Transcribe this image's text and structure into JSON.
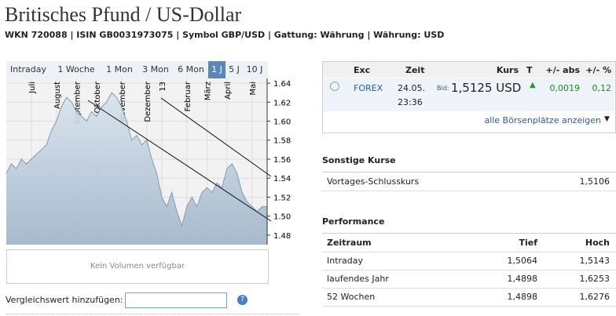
{
  "header": {
    "title": "Britisches Pfund / US-Dollar",
    "subtitle": "WKN 720088 | ISIN GB0031973075 | Symbol GBP/USD | Gattung: Währung | Währung: USD"
  },
  "tabs": [
    "Intraday",
    "1 Woche",
    "1 Mon",
    "3 Mon",
    "6 Mon",
    "1 J",
    "5 J",
    "10 J"
  ],
  "chart_data": {
    "type": "area",
    "watermark": "BoerseGo.de",
    "color": "#7f9ab5",
    "categories": [
      null,
      null,
      null,
      null,
      null,
      "Juli",
      null,
      null,
      null,
      null,
      "August",
      null,
      null,
      null,
      "September",
      null,
      null,
      null,
      "Oktober",
      null,
      null,
      null,
      null,
      "November",
      null,
      null,
      null,
      null,
      "Dezember",
      null,
      null,
      "13",
      null,
      null,
      null,
      null,
      "Februar",
      null,
      null,
      null,
      "März",
      null,
      null,
      null,
      "April",
      null,
      null,
      null,
      null,
      "Mai",
      null,
      null,
      null
    ],
    "values": [
      1.545,
      1.555,
      1.55,
      1.56,
      1.555,
      1.56,
      1.565,
      1.57,
      1.575,
      1.59,
      1.6,
      1.615,
      1.625,
      1.62,
      1.61,
      1.605,
      1.6,
      1.61,
      1.605,
      1.615,
      1.62,
      1.63,
      1.625,
      1.615,
      1.6,
      1.58,
      1.585,
      1.575,
      1.58,
      1.56,
      1.545,
      1.52,
      1.51,
      1.525,
      1.505,
      1.49,
      1.51,
      1.52,
      1.51,
      1.525,
      1.53,
      1.525,
      1.535,
      1.53,
      1.55,
      1.555,
      1.545,
      1.525,
      1.515,
      1.51,
      1.505,
      1.51,
      1.51
    ],
    "ylim": [
      1.47,
      1.645
    ],
    "yticks": [
      1.48,
      {
        "value": 1.5,
        "label": "1.50"
      },
      1.52,
      1.54,
      1.56,
      1.58,
      {
        "value": 1.6,
        "label": "1.60"
      },
      1.62,
      1.64
    ],
    "grid": true
  },
  "volume": "Kein Volumen verfügbar",
  "compare_label": "Vergleichswert hinzufügen:",
  "quote": {
    "headers": [
      "Exc",
      "Zeit",
      "Kurs",
      "T",
      "+/- abs",
      "+/- %"
    ],
    "exchange": "FOREX",
    "date": "24.05.",
    "time": "23:36",
    "bid_label": "Bid:",
    "price": "1,5125 USD",
    "abs": "0,0019",
    "pct": "0,12",
    "more": "alle Börsenplätze anzeigen"
  },
  "other": {
    "title": "Sonstige Kurse",
    "rows": [
      [
        "Vortages-Schlusskurs",
        "1,5106"
      ]
    ]
  },
  "performance": {
    "title": "Performance",
    "headers": [
      "Zeitraum",
      "Tief",
      "Hoch"
    ],
    "rows": [
      [
        "Intraday",
        "1,5064",
        "1,5143"
      ],
      [
        "laufendes Jahr",
        "1,4898",
        "1,6253"
      ],
      [
        "52 Wochen",
        "1,4898",
        "1,6276"
      ]
    ]
  }
}
